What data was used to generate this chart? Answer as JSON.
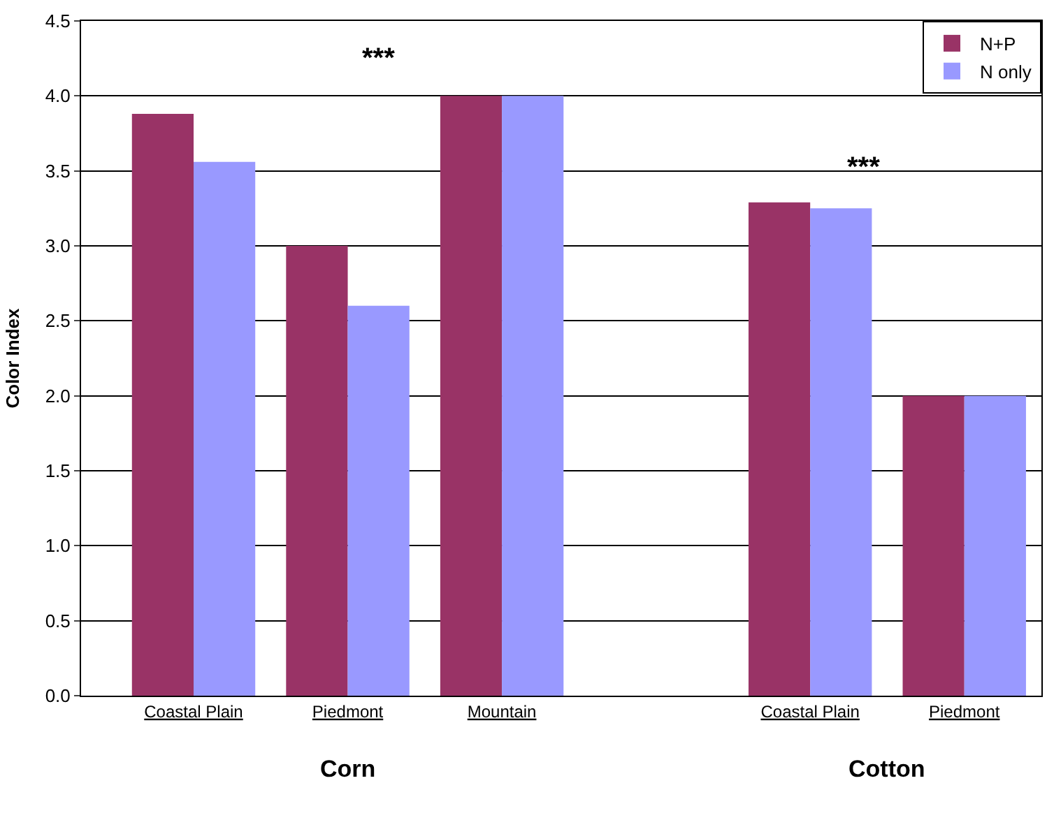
{
  "chart_data": {
    "type": "bar",
    "ylabel": "Color Index",
    "categories": [
      "Coastal Plain",
      "Piedmont",
      "Mountain",
      null,
      "Coastal Plain",
      "Piedmont"
    ],
    "series": [
      {
        "name": "N+P",
        "color": "#993366",
        "values": [
          3.88,
          3.0,
          4.0,
          null,
          3.29,
          2.0
        ]
      },
      {
        "name": "N only",
        "color": "#9999ff",
        "values": [
          3.56,
          2.6,
          4.0,
          null,
          3.25,
          2.0
        ]
      }
    ],
    "ylim": [
      0,
      4.5
    ],
    "yticks": [
      {
        "value": 0,
        "label": "0.0"
      },
      {
        "value": 0.5,
        "label": "0.5"
      },
      {
        "value": 1,
        "label": "1.0"
      },
      {
        "value": 1.5,
        "label": "1.5"
      },
      {
        "value": 2,
        "label": "2.0"
      },
      {
        "value": 2.5,
        "label": "2.5"
      },
      {
        "value": 3,
        "label": "3.0"
      },
      {
        "value": 3.5,
        "label": "3.5"
      },
      {
        "value": 4,
        "label": "4.0"
      },
      {
        "value": 4.5,
        "label": "4.5"
      }
    ],
    "annotations": [
      "***",
      "***",
      "Corn",
      "Cotton"
    ],
    "grid": "y",
    "legend": "top right"
  }
}
